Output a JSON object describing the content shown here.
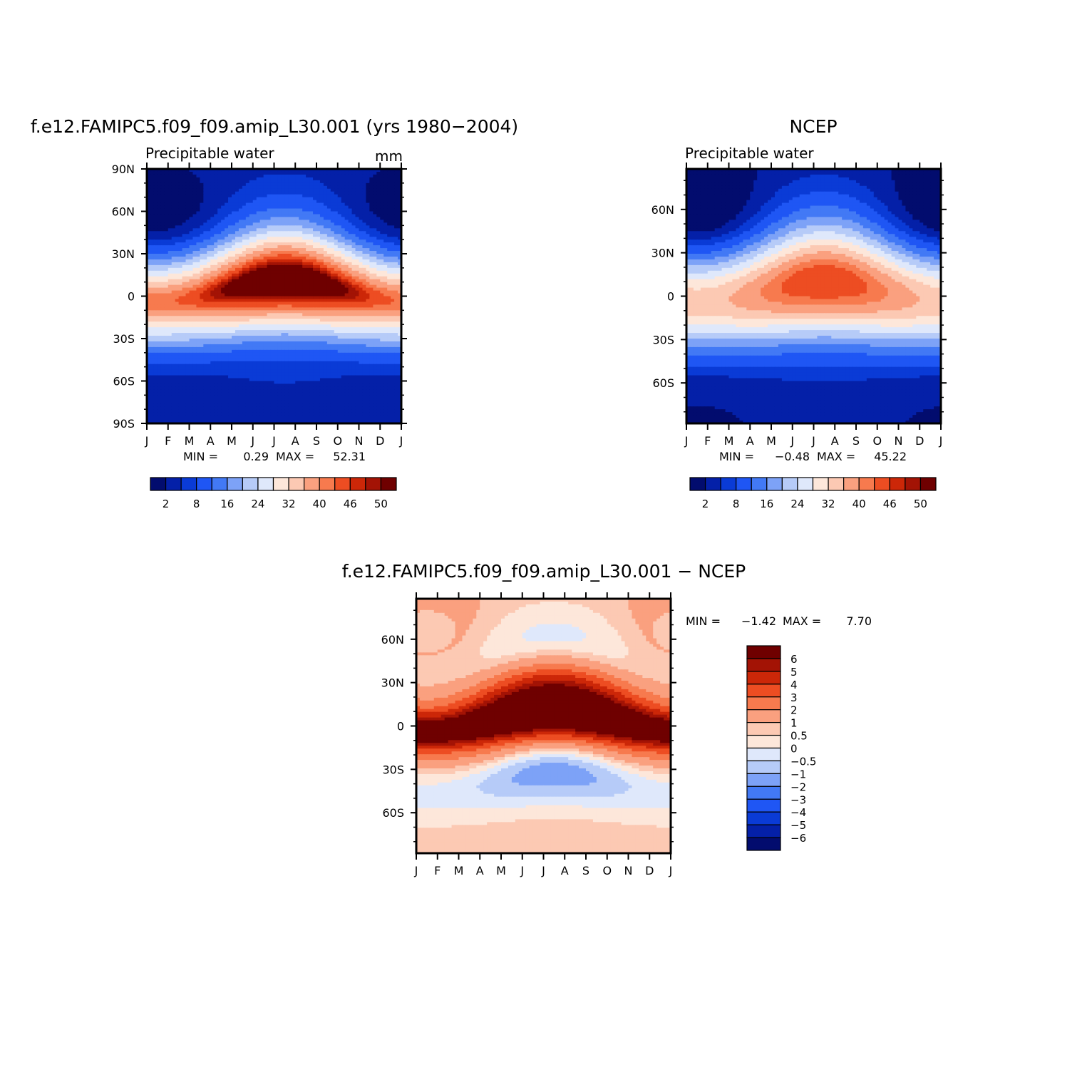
{
  "chart_data": [
    {
      "type": "heatmap",
      "title": "f.e12.FAMIPC5.f09_f09.amip_L30.001 (yrs 1980−2004)",
      "subtitle": "Precipitable water",
      "units": "mm",
      "x_ticks": [
        "J",
        "F",
        "M",
        "A",
        "M",
        "J",
        "J",
        "A",
        "S",
        "O",
        "N",
        "D",
        "J"
      ],
      "y_ticks": [
        "90N",
        "60N",
        "30N",
        "0",
        "30S",
        "60S",
        "90S"
      ],
      "min_label": "MIN =",
      "min_value": "0.29",
      "max_label": "MAX =",
      "max_value": "52.31",
      "min": 0.29,
      "max": 52.31,
      "field": "model",
      "colorbar_labels": [
        "2",
        "8",
        "16",
        "24",
        "32",
        "40",
        "46",
        "50"
      ]
    },
    {
      "type": "heatmap",
      "title": "NCEP",
      "subtitle": "Precipitable water",
      "units": "",
      "x_ticks": [
        "J",
        "F",
        "M",
        "A",
        "M",
        "J",
        "J",
        "A",
        "S",
        "O",
        "N",
        "D",
        "J"
      ],
      "y_ticks": [
        "60N",
        "30N",
        "0",
        "30S",
        "60S"
      ],
      "min_label": "MIN =",
      "min_value": "−0.48",
      "max_label": "MAX =",
      "max_value": "45.22",
      "min": -0.48,
      "max": 45.22,
      "field": "obs",
      "colorbar_labels": [
        "2",
        "8",
        "16",
        "24",
        "32",
        "40",
        "46",
        "50"
      ]
    },
    {
      "type": "heatmap",
      "title": "f.e12.FAMIPC5.f09_f09.amip_L30.001  −  NCEP",
      "subtitle": "",
      "units": "",
      "x_ticks": [
        "J",
        "F",
        "M",
        "A",
        "M",
        "J",
        "J",
        "A",
        "S",
        "O",
        "N",
        "D",
        "J"
      ],
      "y_ticks": [
        "60N",
        "30N",
        "0",
        "30S",
        "60S"
      ],
      "min_label": "MIN =",
      "min_value": "−1.42",
      "max_label": "MAX =",
      "max_value": "7.70",
      "min": -1.42,
      "max": 7.7,
      "field": "diff",
      "colorbar_labels": [
        "6",
        "5",
        "4",
        "3",
        "2",
        "1",
        "0.5",
        "0",
        "−0.5",
        "−1",
        "−2",
        "−3",
        "−4",
        "−5",
        "−6"
      ]
    }
  ],
  "palettes": {
    "main": [
      "#020c6e",
      "#0420a8",
      "#0a3bd6",
      "#1f56f4",
      "#4279f5",
      "#7da2f7",
      "#b6cbf8",
      "#dfe8fb",
      "#fde7da",
      "#fcc9b3",
      "#faa07f",
      "#f77a4e",
      "#ed4d22",
      "#cc2708",
      "#a31305",
      "#6f0000"
    ],
    "diff": [
      "#6f0000",
      "#a31305",
      "#cc2708",
      "#ed4d22",
      "#f77a4e",
      "#faa07f",
      "#fcc9b3",
      "#fde7da",
      "#dfe8fb",
      "#b6cbf8",
      "#7da2f7",
      "#4279f5",
      "#1f56f4",
      "#0a3bd6",
      "#0420a8",
      "#020c6e"
    ]
  }
}
